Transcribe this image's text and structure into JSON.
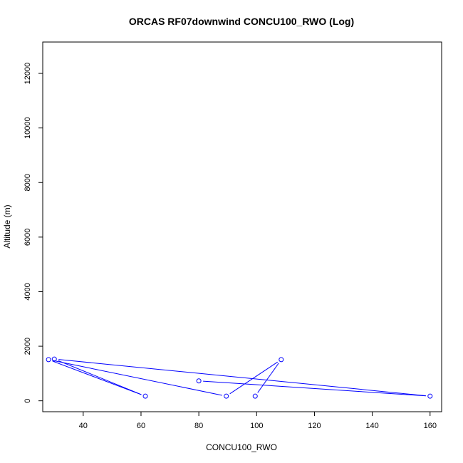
{
  "chart_data": {
    "type": "line",
    "title": "ORCAS RF07downwind CONCU100_RWO (Log)",
    "xlabel": "CONCU100_RWO",
    "ylabel": "Altitude (m)",
    "xlim": [
      26,
      164
    ],
    "ylim": [
      -400,
      13150
    ],
    "x_ticks": [
      40,
      60,
      80,
      100,
      120,
      140,
      160
    ],
    "y_ticks": [
      0,
      2000,
      4000,
      6000,
      8000,
      10000,
      12000
    ],
    "series": [
      {
        "color": "#0000ff",
        "marker": "open-circle",
        "points": [
          {
            "x": 80,
            "y": 730
          },
          {
            "x": 160,
            "y": 170
          },
          {
            "x": 30,
            "y": 1530
          },
          {
            "x": 61.5,
            "y": 170
          },
          {
            "x": 28,
            "y": 1510
          },
          {
            "x": 89.5,
            "y": 170
          },
          {
            "x": 108.5,
            "y": 1510
          },
          {
            "x": 99.5,
            "y": 170
          }
        ]
      }
    ]
  }
}
